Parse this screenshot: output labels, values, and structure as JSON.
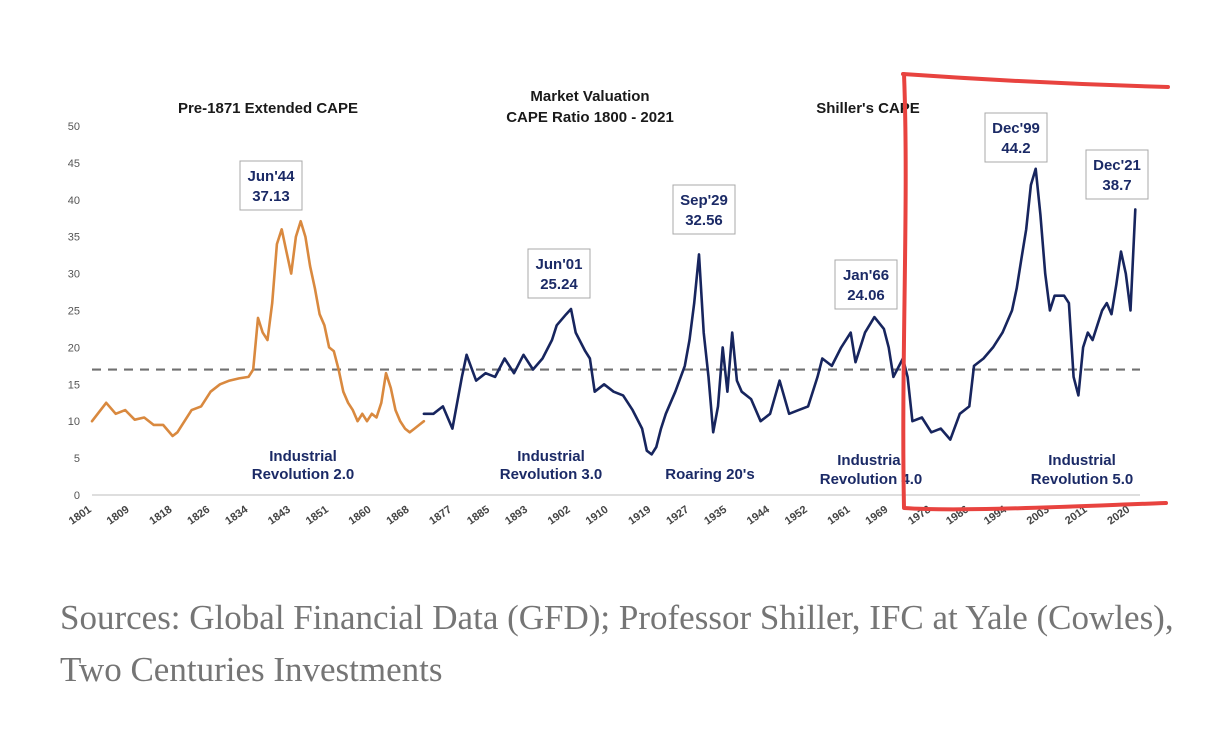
{
  "chart_data": {
    "type": "line",
    "title": "Market Valuation",
    "subtitle": "CAPE Ratio 1800 - 2021",
    "panel_labels": [
      "Pre-1871 Extended CAPE",
      "Shiller's CAPE"
    ],
    "ylim": [
      0,
      50
    ],
    "y_ticks": [
      0,
      5,
      10,
      15,
      20,
      25,
      30,
      35,
      40,
      45,
      50
    ],
    "xlim": [
      1801,
      2022
    ],
    "x_ticks": [
      1801,
      1809,
      1818,
      1826,
      1834,
      1843,
      1851,
      1860,
      1868,
      1877,
      1885,
      1893,
      1902,
      1910,
      1919,
      1927,
      1935,
      1944,
      1952,
      1961,
      1969,
      1978,
      1986,
      1994,
      2003,
      2011,
      2020
    ],
    "reference_line": {
      "y": 17,
      "style": "dashed"
    },
    "series": [
      {
        "color": "#d9893f",
        "x": [
          1801,
          1804,
          1806,
          1808,
          1810,
          1812,
          1814,
          1816,
          1818,
          1819,
          1820,
          1822,
          1824,
          1826,
          1828,
          1830,
          1832,
          1834,
          1835,
          1836,
          1837,
          1838,
          1839,
          1840,
          1841,
          1842,
          1843,
          1844,
          1845,
          1846,
          1847,
          1848,
          1849,
          1850,
          1851,
          1852,
          1853,
          1854,
          1855,
          1856,
          1857,
          1858,
          1859,
          1860,
          1861,
          1862,
          1863,
          1864,
          1865,
          1866,
          1867,
          1868,
          1869,
          1870,
          1871
        ],
        "y": [
          10,
          12.5,
          11,
          11.5,
          10.2,
          10.5,
          9.5,
          9.5,
          8,
          8.5,
          9.5,
          11.5,
          12,
          14,
          15,
          15.5,
          15.8,
          16,
          17,
          24,
          22,
          21,
          26,
          34,
          36,
          33,
          30,
          35,
          37.1,
          35,
          31,
          28,
          24.5,
          23,
          20,
          19.5,
          17,
          14,
          12.5,
          11.5,
          10,
          11,
          10,
          11,
          10.5,
          12.5,
          16.5,
          14.5,
          11.5,
          10,
          9,
          8.5,
          9,
          9.5,
          10
        ]
      },
      {
        "color": "#17255e",
        "x": [
          1871,
          1873,
          1875,
          1877,
          1879,
          1880,
          1882,
          1884,
          1886,
          1888,
          1890,
          1892,
          1894,
          1896,
          1898,
          1899,
          1901,
          1902,
          1903,
          1905,
          1906,
          1907,
          1909,
          1911,
          1913,
          1915,
          1917,
          1918,
          1919,
          1920,
          1921,
          1922,
          1924,
          1926,
          1927,
          1928,
          1929,
          1930,
          1931,
          1932,
          1933,
          1934,
          1935,
          1936,
          1937,
          1938,
          1940,
          1942,
          1944,
          1946,
          1948,
          1950,
          1952,
          1954,
          1955,
          1957,
          1959,
          1961,
          1962,
          1964,
          1966,
          1968,
          1969,
          1970,
          1972,
          1973,
          1974,
          1976,
          1978,
          1980,
          1982,
          1984,
          1986,
          1987,
          1989,
          1991,
          1993,
          1995,
          1996,
          1997,
          1998,
          1999,
          2000,
          2001,
          2002,
          2003,
          2004,
          2005,
          2006,
          2007,
          2008,
          2009,
          2010,
          2011,
          2012,
          2013,
          2014,
          2015,
          2016,
          2017,
          2018,
          2019,
          2020,
          2021
        ],
        "y": [
          11,
          11,
          12,
          9,
          16,
          19,
          15.5,
          16.5,
          16,
          18.5,
          16.5,
          19,
          17,
          18.5,
          21,
          23,
          24.5,
          25.2,
          22,
          19.5,
          18.5,
          14,
          15,
          14,
          13.5,
          11.5,
          9,
          6,
          5.5,
          6.5,
          9,
          11,
          14,
          17.5,
          21,
          26,
          32.6,
          22,
          16,
          8.5,
          12,
          20,
          14,
          22,
          15.5,
          14,
          13,
          10,
          11,
          15.5,
          11,
          11.5,
          12,
          16,
          18.5,
          17.5,
          20,
          22,
          18,
          22,
          24.1,
          22.5,
          20,
          16,
          18.5,
          16,
          10,
          10.5,
          8.5,
          9,
          7.5,
          11,
          12,
          17.5,
          18.5,
          20,
          22,
          25,
          28,
          32,
          36,
          42,
          44.2,
          38,
          30,
          25,
          27,
          27,
          27,
          26,
          16,
          13.5,
          20,
          22,
          21,
          23,
          25,
          26,
          24.5,
          28.5,
          33,
          30,
          25,
          38.7
        ]
      }
    ],
    "annotations": [
      {
        "x": 1844,
        "y": 37.13,
        "line1": "Jun'44",
        "line2": "37.13"
      },
      {
        "x": 1901,
        "y": 25.24,
        "line1": "Jun'01",
        "line2": "25.24"
      },
      {
        "x": 1929,
        "y": 32.56,
        "line1": "Sep'29",
        "line2": "32.56"
      },
      {
        "x": 1966,
        "y": 24.06,
        "line1": "Jan'66",
        "line2": "24.06"
      },
      {
        "x": 1999,
        "y": 44.2,
        "line1": "Dec'99",
        "line2": "44.2"
      },
      {
        "x": 2021,
        "y": 38.7,
        "line1": "Dec'21",
        "line2": "38.7"
      }
    ],
    "era_labels": [
      {
        "line1": "Industrial",
        "line2": "Revolution 2.0"
      },
      {
        "line1": "Industrial",
        "line2": "Revolution 3.0"
      },
      {
        "line1": "Roaring 20's",
        "line2": ""
      },
      {
        "line1": "Industrial",
        "line2": "Revolution 4.0"
      },
      {
        "line1": "Industrial",
        "line2": "Revolution 5.0"
      }
    ],
    "highlight": {
      "color": "#e8433f",
      "from_year": 1972,
      "to_year": 2022
    },
    "colors": {
      "pre1871": "#d9893f",
      "shiller": "#17255e",
      "reference": "#707070",
      "highlight": "#e8433f"
    }
  },
  "caption": "Sources: Global Financial Data (GFD); Professor Shiller, IFC at Yale (Cowles), Two Centuries Investments"
}
